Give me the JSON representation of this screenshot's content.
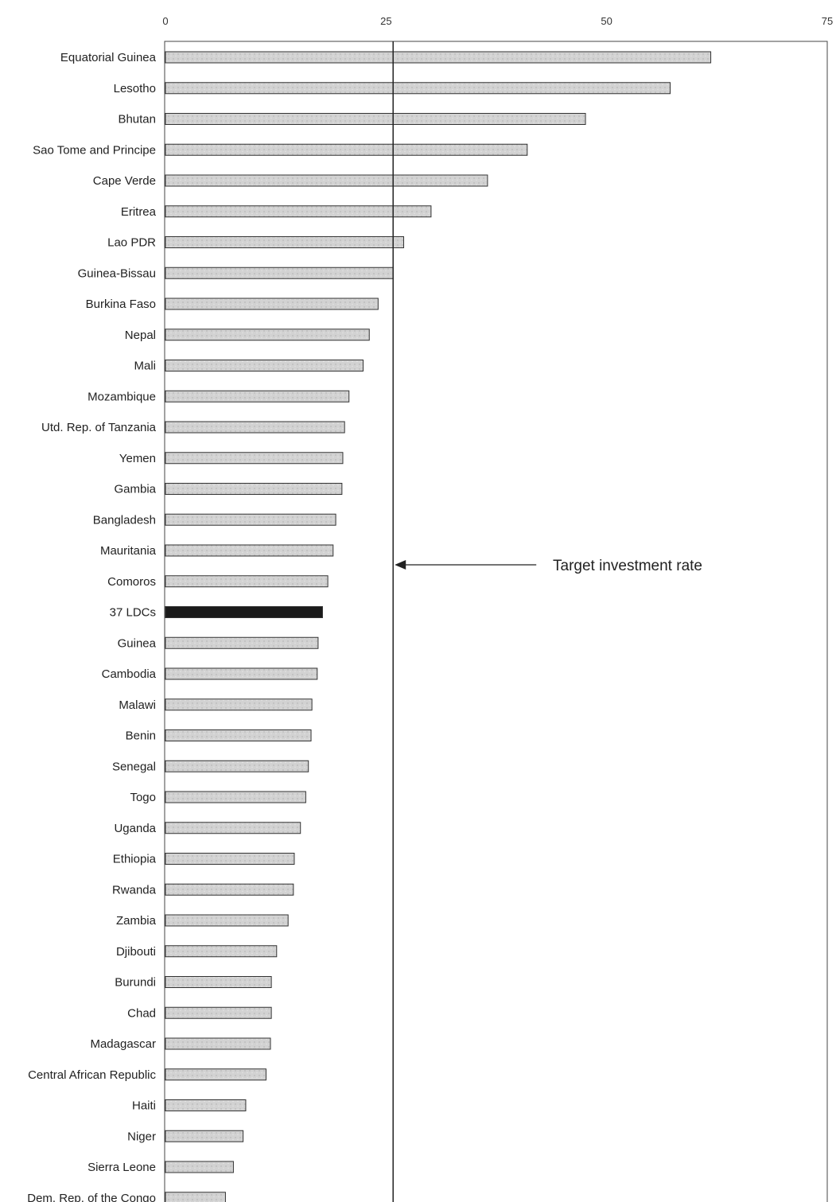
{
  "chart_data": {
    "type": "bar",
    "orientation": "horizontal",
    "categories": [
      "Equatorial Guinea",
      "Lesotho",
      "Bhutan",
      "Sao Tome and Principe",
      "Cape Verde",
      "Eritrea",
      "Lao PDR",
      "Guinea-Bissau",
      "Burkina Faso",
      "Nepal",
      "Mali",
      "Mozambique",
      "Utd. Rep. of Tanzania",
      "Yemen",
      "Gambia",
      "Bangladesh",
      "Mauritania",
      "Comoros",
      "37 LDCs",
      "Guinea",
      "Cambodia",
      "Malawi",
      "Benin",
      "Senegal",
      "Togo",
      "Uganda",
      "Ethiopia",
      "Rwanda",
      "Zambia",
      "Djibouti",
      "Burundi",
      "Chad",
      "Madagascar",
      "Central African Republic",
      "Haiti",
      "Niger",
      "Sierra Leone",
      "Dem. Rep. of the Congo"
    ],
    "values": [
      61.8,
      57.2,
      47.6,
      41.0,
      36.5,
      30.1,
      27.0,
      25.8,
      24.1,
      23.1,
      22.4,
      20.8,
      20.3,
      20.1,
      20.0,
      19.3,
      19.0,
      18.4,
      17.8,
      17.3,
      17.2,
      16.6,
      16.5,
      16.2,
      15.9,
      15.3,
      14.6,
      14.5,
      13.9,
      12.6,
      12.0,
      12.0,
      11.9,
      11.4,
      9.1,
      8.8,
      7.7,
      6.8
    ],
    "highlight": [
      "37 LDCs"
    ],
    "xlim": [
      0,
      75
    ],
    "xticks": [
      0,
      25,
      50,
      75
    ],
    "xtick_labels": [
      "0",
      "25",
      "50",
      "75"
    ],
    "reference_line": {
      "value": 25.8,
      "label": "Target investment rate"
    },
    "colors": {
      "bar": "#cfcfcf",
      "highlight_bar": "#1a1a1a",
      "stroke": "#333333"
    },
    "grid": false,
    "legend": "none"
  }
}
